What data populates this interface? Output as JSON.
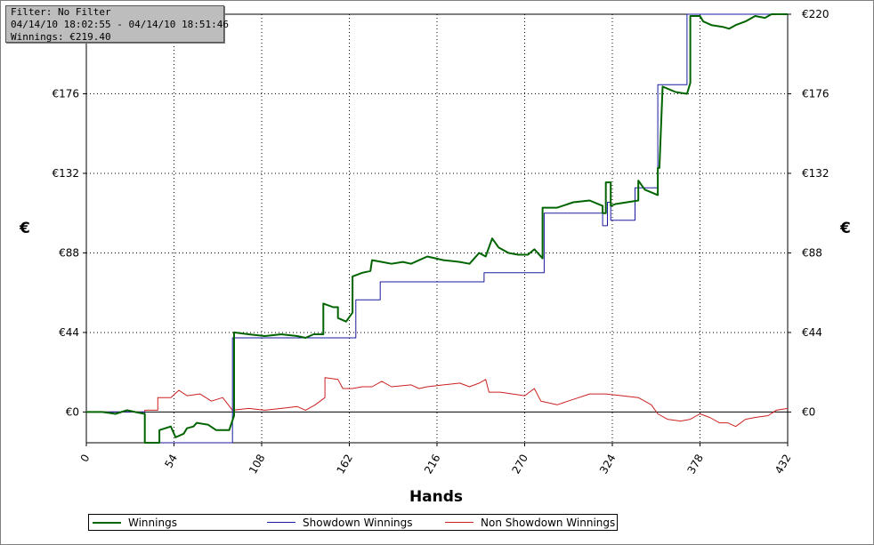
{
  "info": {
    "filter": "Filter: No Filter",
    "range": "04/14/10 18:02:55 - 04/14/10 18:51:46",
    "winnings": "Winnings: €219.40"
  },
  "chart_data": {
    "type": "line",
    "xlabel": "Hands",
    "ylabel": "€",
    "xlim": [
      0,
      432
    ],
    "ylim": [
      -17,
      220
    ],
    "x_ticks": [
      0,
      54,
      108,
      162,
      216,
      270,
      324,
      378,
      432
    ],
    "y_ticks": [
      0,
      44,
      88,
      132,
      176,
      220
    ],
    "y_tick_labels": [
      "€0",
      "€44",
      "€88",
      "€132",
      "€176",
      "€220"
    ],
    "grid": true,
    "legend_position": "bottom",
    "series": [
      {
        "name": "Winnings",
        "color": "#006400",
        "points": [
          [
            0,
            0
          ],
          [
            10,
            0
          ],
          [
            18,
            -1
          ],
          [
            25,
            1
          ],
          [
            30,
            0
          ],
          [
            36,
            -1
          ],
          [
            36,
            -17
          ],
          [
            45,
            -17
          ],
          [
            45,
            -10
          ],
          [
            52,
            -8
          ],
          [
            55,
            -14
          ],
          [
            60,
            -12
          ],
          [
            62,
            -9
          ],
          [
            66,
            -8
          ],
          [
            68,
            -6
          ],
          [
            75,
            -7
          ],
          [
            80,
            -10
          ],
          [
            88,
            -10
          ],
          [
            91,
            -2
          ],
          [
            91,
            44
          ],
          [
            100,
            43
          ],
          [
            110,
            42
          ],
          [
            120,
            43
          ],
          [
            130,
            42
          ],
          [
            135,
            41
          ],
          [
            140,
            43
          ],
          [
            146,
            43
          ],
          [
            146,
            60
          ],
          [
            152,
            58
          ],
          [
            155,
            58
          ],
          [
            155,
            52
          ],
          [
            160,
            50
          ],
          [
            164,
            55
          ],
          [
            164,
            75
          ],
          [
            170,
            77
          ],
          [
            175,
            78
          ],
          [
            176,
            84
          ],
          [
            182,
            83
          ],
          [
            188,
            82
          ],
          [
            195,
            83
          ],
          [
            200,
            82
          ],
          [
            210,
            86
          ],
          [
            220,
            84
          ],
          [
            230,
            83
          ],
          [
            236,
            82
          ],
          [
            242,
            88
          ],
          [
            246,
            86
          ],
          [
            250,
            96
          ],
          [
            254,
            91
          ],
          [
            260,
            88
          ],
          [
            266,
            87
          ],
          [
            272,
            87
          ],
          [
            276,
            90
          ],
          [
            281,
            85
          ],
          [
            281,
            113
          ],
          [
            290,
            113
          ],
          [
            300,
            116
          ],
          [
            310,
            117
          ],
          [
            318,
            114
          ],
          [
            318,
            110
          ],
          [
            320,
            110
          ],
          [
            320,
            127
          ],
          [
            323,
            127
          ],
          [
            323,
            114
          ],
          [
            326,
            115
          ],
          [
            340,
            117
          ],
          [
            340,
            128
          ],
          [
            344,
            123
          ],
          [
            352,
            120
          ],
          [
            352,
            135
          ],
          [
            353,
            135
          ],
          [
            355,
            180
          ],
          [
            363,
            177
          ],
          [
            370,
            176
          ],
          [
            372,
            182
          ],
          [
            372,
            219
          ],
          [
            378,
            219
          ],
          [
            380,
            216
          ],
          [
            385,
            214
          ],
          [
            392,
            213
          ],
          [
            396,
            212
          ],
          [
            400,
            214
          ],
          [
            406,
            216
          ],
          [
            412,
            219
          ],
          [
            418,
            218
          ],
          [
            422,
            220
          ],
          [
            432,
            220
          ]
        ]
      },
      {
        "name": "Showdown Winnings",
        "color": "#1a1aa0",
        "points": [
          [
            0,
            0
          ],
          [
            36,
            0
          ],
          [
            36,
            -17
          ],
          [
            90,
            -17
          ],
          [
            90,
            41
          ],
          [
            166,
            41
          ],
          [
            166,
            62
          ],
          [
            181,
            62
          ],
          [
            181,
            72
          ],
          [
            245,
            72
          ],
          [
            245,
            77
          ],
          [
            282,
            77
          ],
          [
            282,
            110
          ],
          [
            318,
            110
          ],
          [
            318,
            103
          ],
          [
            321,
            103
          ],
          [
            321,
            116
          ],
          [
            323,
            116
          ],
          [
            323,
            106
          ],
          [
            338,
            106
          ],
          [
            338,
            124
          ],
          [
            352,
            124
          ],
          [
            352,
            181
          ],
          [
            370,
            181
          ],
          [
            370,
            220
          ],
          [
            432,
            220
          ]
        ]
      },
      {
        "name": "Non Showdown Winnings",
        "color": "#cc2020",
        "points": [
          [
            0,
            0
          ],
          [
            36,
            0
          ],
          [
            36,
            1
          ],
          [
            44,
            1
          ],
          [
            44,
            8
          ],
          [
            52,
            8
          ],
          [
            57,
            12
          ],
          [
            62,
            9
          ],
          [
            70,
            10
          ],
          [
            77,
            6
          ],
          [
            84,
            8
          ],
          [
            90,
            1
          ],
          [
            100,
            2
          ],
          [
            110,
            1
          ],
          [
            120,
            2
          ],
          [
            130,
            3
          ],
          [
            135,
            1
          ],
          [
            141,
            4
          ],
          [
            147,
            8
          ],
          [
            147,
            19
          ],
          [
            155,
            18
          ],
          [
            158,
            13
          ],
          [
            164,
            13
          ],
          [
            170,
            14
          ],
          [
            176,
            14
          ],
          [
            182,
            17
          ],
          [
            188,
            14
          ],
          [
            200,
            15
          ],
          [
            205,
            13
          ],
          [
            210,
            14
          ],
          [
            220,
            15
          ],
          [
            230,
            16
          ],
          [
            236,
            14
          ],
          [
            242,
            16
          ],
          [
            246,
            18
          ],
          [
            248,
            11
          ],
          [
            255,
            11
          ],
          [
            270,
            9
          ],
          [
            276,
            13
          ],
          [
            280,
            6
          ],
          [
            290,
            4
          ],
          [
            300,
            7
          ],
          [
            310,
            10
          ],
          [
            320,
            10
          ],
          [
            330,
            9
          ],
          [
            340,
            8
          ],
          [
            348,
            4
          ],
          [
            352,
            -1
          ],
          [
            358,
            -4
          ],
          [
            366,
            -5
          ],
          [
            372,
            -4
          ],
          [
            378,
            -1
          ],
          [
            384,
            -3
          ],
          [
            390,
            -6
          ],
          [
            395,
            -6
          ],
          [
            400,
            -8
          ],
          [
            406,
            -4
          ],
          [
            412,
            -3
          ],
          [
            420,
            -2
          ],
          [
            425,
            1
          ],
          [
            432,
            2
          ]
        ]
      }
    ]
  }
}
